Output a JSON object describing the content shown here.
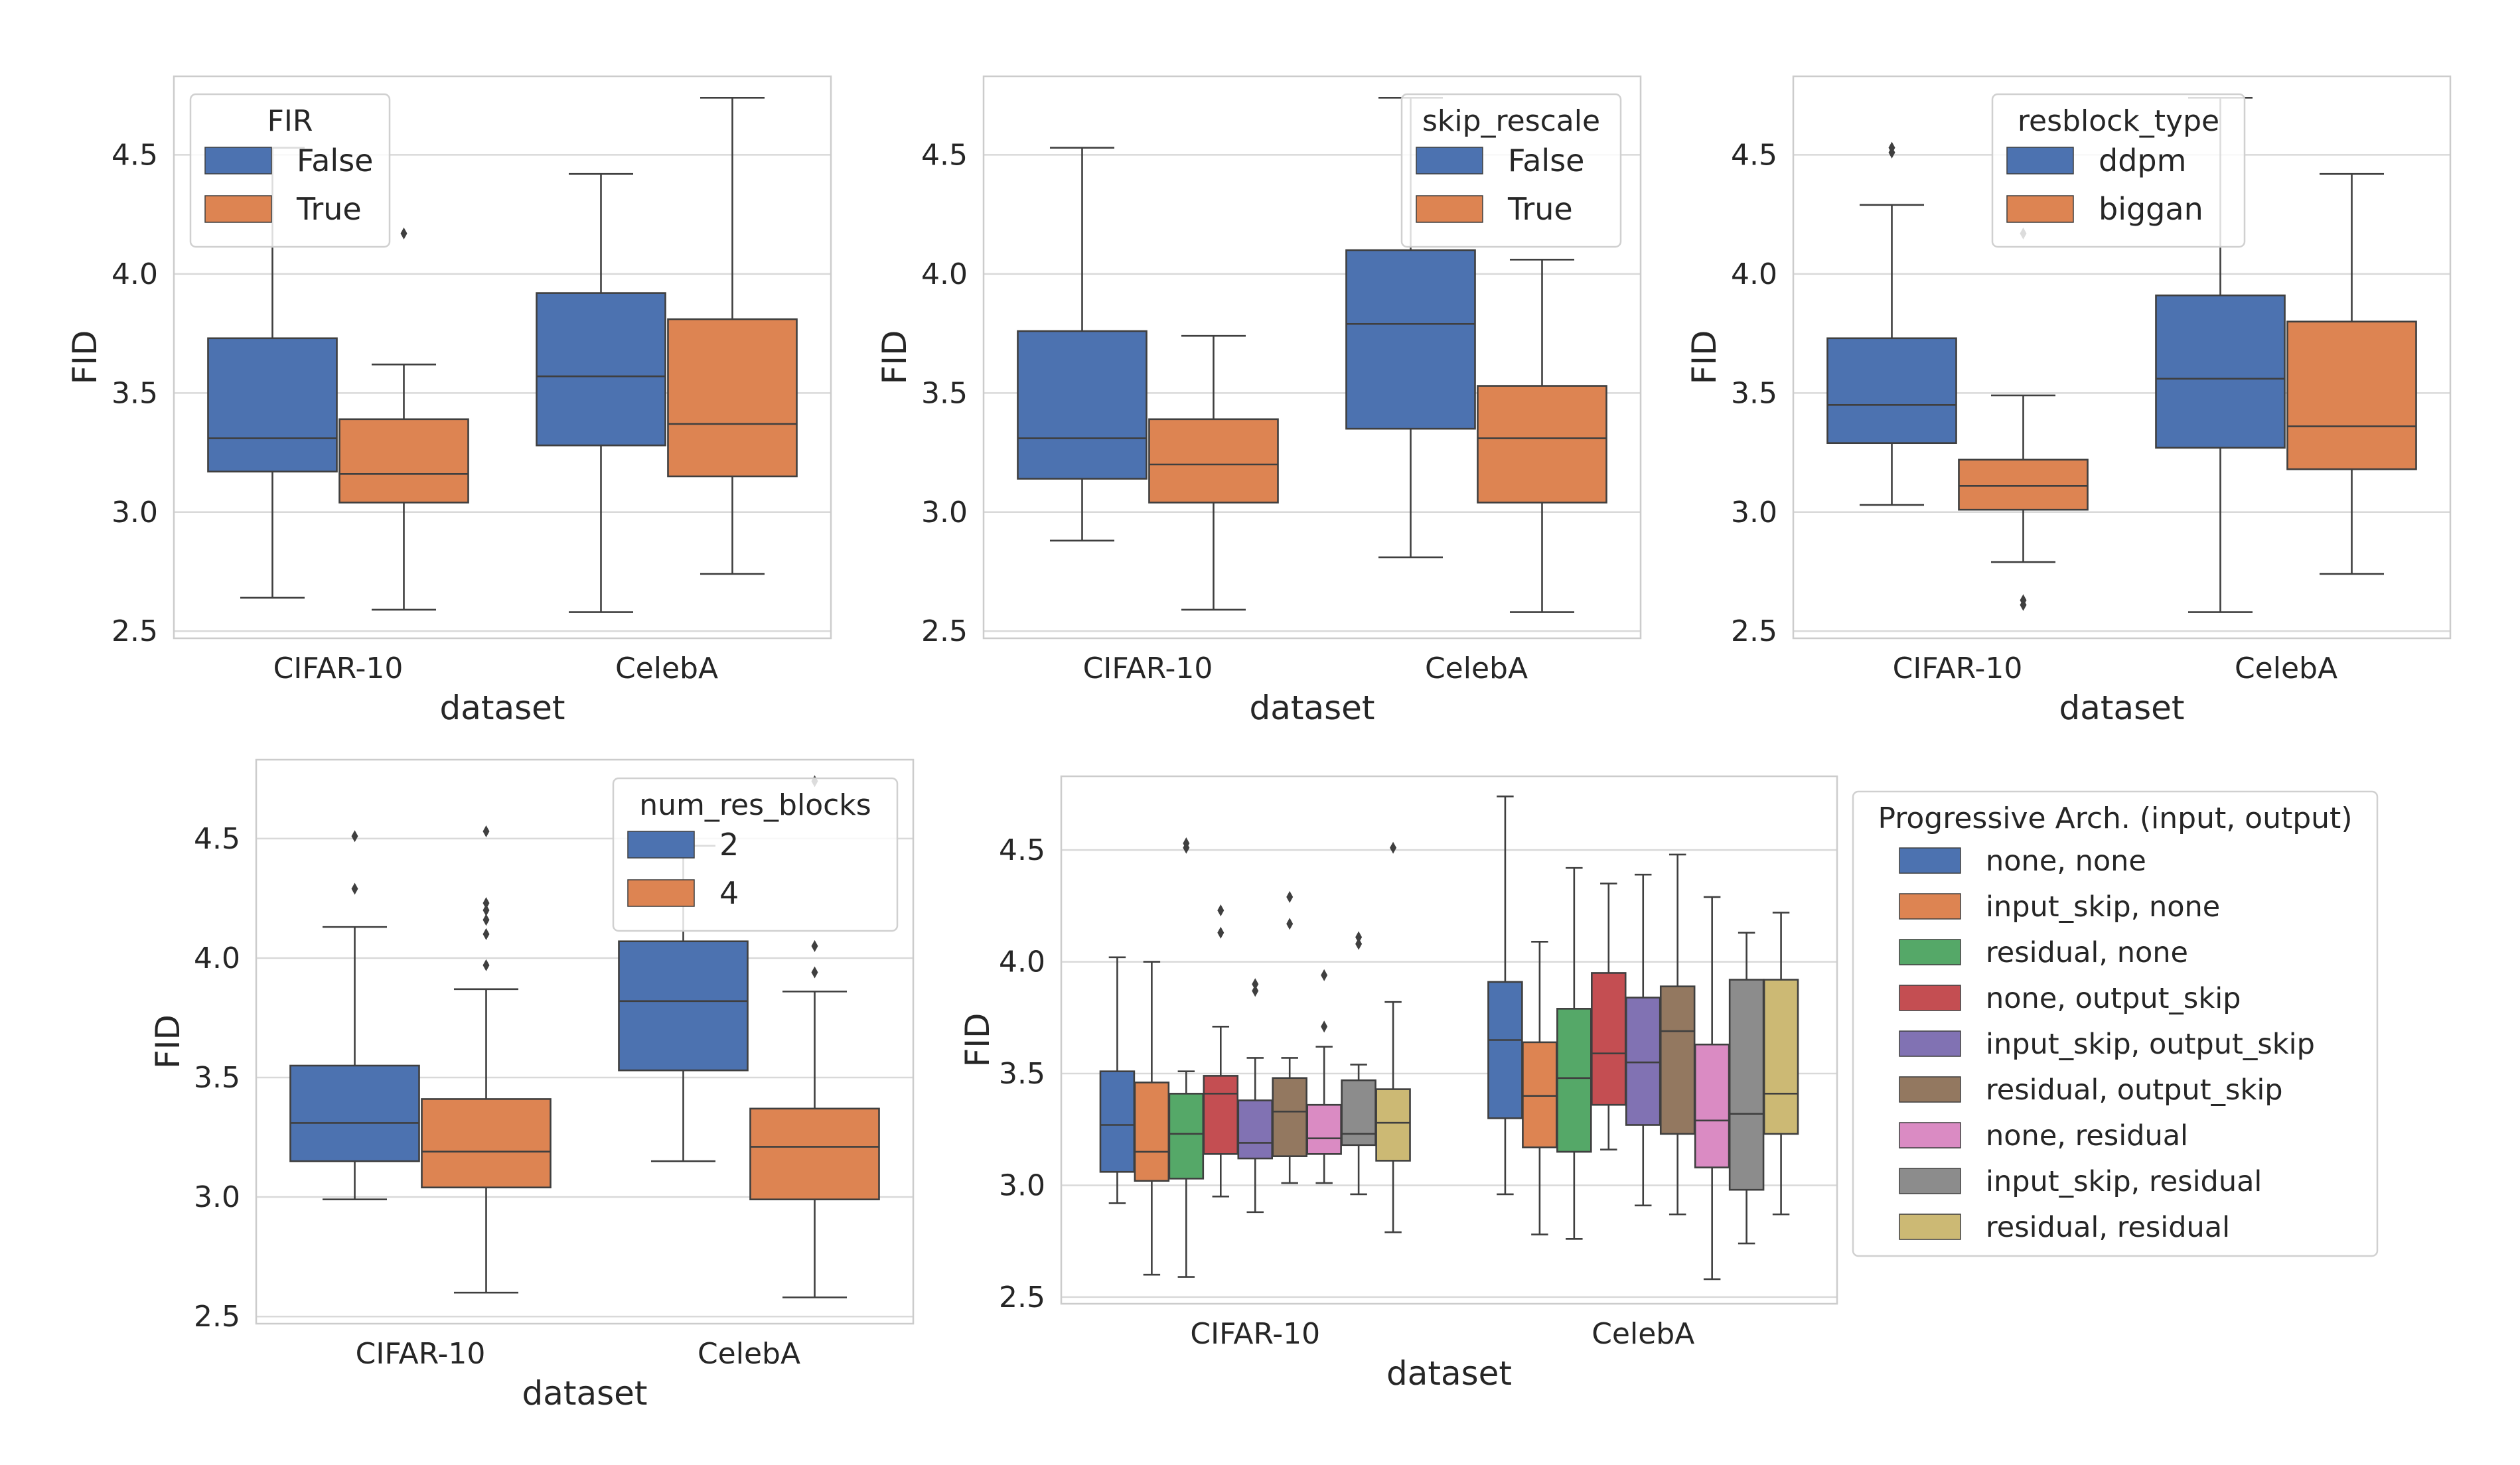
{
  "colors": {
    "blue": "#4c72b0",
    "orange": "#dd8452",
    "green": "#55a868",
    "red": "#c44e52",
    "purple": "#8172b3",
    "brown": "#937860",
    "pink": "#da8bc3",
    "gray": "#8c8c8c",
    "olive": "#ccb974",
    "grid": "#d9d9d9",
    "box_edge": "#3f3f3f"
  },
  "chart_data": [
    {
      "type": "box",
      "xlabel": "dataset",
      "ylabel": "FID",
      "ylim": [
        2.47,
        4.83
      ],
      "yticks": [
        "2.5",
        "3.0",
        "3.5",
        "4.0",
        "4.5"
      ],
      "categories": [
        "CIFAR-10",
        "CelebA"
      ],
      "grid": true,
      "legend": {
        "title": "FIR",
        "position": "top-left"
      },
      "series": [
        {
          "name": "False",
          "color_key": "blue",
          "boxes": [
            {
              "whislo": 2.64,
              "q1": 3.17,
              "med": 3.31,
              "q3": 3.73,
              "whishi": 4.53,
              "fliers": []
            },
            {
              "whislo": 2.58,
              "q1": 3.28,
              "med": 3.57,
              "q3": 3.92,
              "whishi": 4.42,
              "fliers": []
            }
          ]
        },
        {
          "name": "True",
          "color_key": "orange",
          "boxes": [
            {
              "whislo": 2.59,
              "q1": 3.04,
              "med": 3.16,
              "q3": 3.39,
              "whishi": 3.62,
              "fliers": [
                4.17
              ]
            },
            {
              "whislo": 2.74,
              "q1": 3.15,
              "med": 3.37,
              "q3": 3.81,
              "whishi": 4.74,
              "fliers": []
            }
          ]
        }
      ]
    },
    {
      "type": "box",
      "xlabel": "dataset",
      "ylabel": "FID",
      "ylim": [
        2.47,
        4.83
      ],
      "yticks": [
        "2.5",
        "3.0",
        "3.5",
        "4.0",
        "4.5"
      ],
      "categories": [
        "CIFAR-10",
        "CelebA"
      ],
      "grid": true,
      "legend": {
        "title": "skip_rescale",
        "position": "top-right"
      },
      "series": [
        {
          "name": "False",
          "color_key": "blue",
          "boxes": [
            {
              "whislo": 2.88,
              "q1": 3.14,
              "med": 3.31,
              "q3": 3.76,
              "whishi": 4.53,
              "fliers": []
            },
            {
              "whislo": 2.81,
              "q1": 3.35,
              "med": 3.79,
              "q3": 4.1,
              "whishi": 4.74,
              "fliers": []
            }
          ]
        },
        {
          "name": "True",
          "color_key": "orange",
          "boxes": [
            {
              "whislo": 2.59,
              "q1": 3.04,
              "med": 3.2,
              "q3": 3.39,
              "whishi": 3.74,
              "fliers": []
            },
            {
              "whislo": 2.58,
              "q1": 3.04,
              "med": 3.31,
              "q3": 3.53,
              "whishi": 4.06,
              "fliers": []
            }
          ]
        }
      ]
    },
    {
      "type": "box",
      "xlabel": "dataset",
      "ylabel": "FID",
      "ylim": [
        2.47,
        4.83
      ],
      "yticks": [
        "2.5",
        "3.0",
        "3.5",
        "4.0",
        "4.5"
      ],
      "categories": [
        "CIFAR-10",
        "CelebA"
      ],
      "grid": true,
      "legend": {
        "title": "resblock_type",
        "position": "top-center"
      },
      "series": [
        {
          "name": "ddpm",
          "color_key": "blue",
          "boxes": [
            {
              "whislo": 3.03,
              "q1": 3.29,
              "med": 3.45,
              "q3": 3.73,
              "whishi": 4.29,
              "fliers": [
                4.51,
                4.53
              ]
            },
            {
              "whislo": 2.58,
              "q1": 3.27,
              "med": 3.56,
              "q3": 3.91,
              "whishi": 4.74,
              "fliers": []
            }
          ]
        },
        {
          "name": "biggan",
          "color_key": "orange",
          "boxes": [
            {
              "whislo": 2.79,
              "q1": 3.01,
              "med": 3.11,
              "q3": 3.22,
              "whishi": 3.49,
              "fliers": [
                2.61,
                2.63,
                4.17
              ]
            },
            {
              "whislo": 2.74,
              "q1": 3.18,
              "med": 3.36,
              "q3": 3.8,
              "whishi": 4.42,
              "fliers": []
            }
          ]
        }
      ]
    },
    {
      "type": "box",
      "xlabel": "dataset",
      "ylabel": "FID",
      "ylim": [
        2.47,
        4.83
      ],
      "yticks": [
        "2.5",
        "3.0",
        "3.5",
        "4.0",
        "4.5"
      ],
      "categories": [
        "CIFAR-10",
        "CelebA"
      ],
      "grid": true,
      "legend": {
        "title": "num_res_blocks",
        "position": "top-right"
      },
      "series": [
        {
          "name": "2",
          "color_key": "blue",
          "boxes": [
            {
              "whislo": 2.99,
              "q1": 3.15,
              "med": 3.31,
              "q3": 3.55,
              "whishi": 4.13,
              "fliers": [
                4.29,
                4.51
              ]
            },
            {
              "whislo": 3.15,
              "q1": 3.53,
              "med": 3.82,
              "q3": 4.07,
              "whishi": 4.47,
              "fliers": []
            }
          ]
        },
        {
          "name": "4",
          "color_key": "orange",
          "boxes": [
            {
              "whislo": 2.6,
              "q1": 3.04,
              "med": 3.19,
              "q3": 3.41,
              "whishi": 3.87,
              "fliers": [
                3.97,
                4.1,
                4.16,
                4.2,
                4.23,
                4.53
              ]
            },
            {
              "whislo": 2.58,
              "q1": 2.99,
              "med": 3.21,
              "q3": 3.37,
              "whishi": 3.86,
              "fliers": [
                3.94,
                4.05,
                4.74
              ]
            }
          ]
        }
      ]
    },
    {
      "type": "box",
      "xlabel": "dataset",
      "ylabel": "FID",
      "ylim": [
        2.47,
        4.83
      ],
      "yticks": [
        "2.5",
        "3.0",
        "3.5",
        "4.0",
        "4.5"
      ],
      "categories": [
        "CIFAR-10",
        "CelebA"
      ],
      "grid": true,
      "legend": {
        "title": "Progressive Arch. (input, output)",
        "position": "outside-right"
      },
      "series": [
        {
          "name": "none, none",
          "color_key": "blue",
          "boxes": [
            {
              "whislo": 2.92,
              "q1": 3.06,
              "med": 3.27,
              "q3": 3.51,
              "whishi": 4.02,
              "fliers": []
            },
            {
              "whislo": 2.96,
              "q1": 3.3,
              "med": 3.65,
              "q3": 3.91,
              "whishi": 4.74,
              "fliers": []
            }
          ]
        },
        {
          "name": "input_skip, none",
          "color_key": "orange",
          "boxes": [
            {
              "whislo": 2.6,
              "q1": 3.02,
              "med": 3.15,
              "q3": 3.46,
              "whishi": 4.0,
              "fliers": []
            },
            {
              "whislo": 2.78,
              "q1": 3.17,
              "med": 3.4,
              "q3": 3.64,
              "whishi": 4.09,
              "fliers": []
            }
          ]
        },
        {
          "name": "residual, none",
          "color_key": "green",
          "boxes": [
            {
              "whislo": 2.59,
              "q1": 3.03,
              "med": 3.23,
              "q3": 3.41,
              "whishi": 3.51,
              "fliers": [
                4.51,
                4.53
              ]
            },
            {
              "whislo": 2.76,
              "q1": 3.15,
              "med": 3.48,
              "q3": 3.79,
              "whishi": 4.42,
              "fliers": []
            }
          ]
        },
        {
          "name": "none, output_skip",
          "color_key": "red",
          "boxes": [
            {
              "whislo": 2.95,
              "q1": 3.14,
              "med": 3.41,
              "q3": 3.49,
              "whishi": 3.71,
              "fliers": [
                4.13,
                4.23
              ]
            },
            {
              "whislo": 3.16,
              "q1": 3.36,
              "med": 3.59,
              "q3": 3.95,
              "whishi": 4.35,
              "fliers": []
            }
          ]
        },
        {
          "name": "input_skip, output_skip",
          "color_key": "purple",
          "boxes": [
            {
              "whislo": 2.88,
              "q1": 3.12,
              "med": 3.19,
              "q3": 3.38,
              "whishi": 3.57,
              "fliers": [
                3.87,
                3.9
              ]
            },
            {
              "whislo": 2.91,
              "q1": 3.27,
              "med": 3.55,
              "q3": 3.84,
              "whishi": 4.39,
              "fliers": []
            }
          ]
        },
        {
          "name": "residual, output_skip",
          "color_key": "brown",
          "boxes": [
            {
              "whislo": 3.01,
              "q1": 3.13,
              "med": 3.33,
              "q3": 3.48,
              "whishi": 3.57,
              "fliers": [
                4.17,
                4.29
              ]
            },
            {
              "whislo": 2.87,
              "q1": 3.23,
              "med": 3.69,
              "q3": 3.89,
              "whishi": 4.48,
              "fliers": []
            }
          ]
        },
        {
          "name": "none, residual",
          "color_key": "pink",
          "boxes": [
            {
              "whislo": 3.01,
              "q1": 3.14,
              "med": 3.21,
              "q3": 3.36,
              "whishi": 3.62,
              "fliers": [
                3.71,
                3.94
              ]
            },
            {
              "whislo": 2.58,
              "q1": 3.08,
              "med": 3.29,
              "q3": 3.63,
              "whishi": 4.29,
              "fliers": []
            }
          ]
        },
        {
          "name": "input_skip, residual",
          "color_key": "gray",
          "boxes": [
            {
              "whislo": 2.96,
              "q1": 3.18,
              "med": 3.23,
              "q3": 3.47,
              "whishi": 3.54,
              "fliers": [
                4.08,
                4.11
              ]
            },
            {
              "whislo": 2.74,
              "q1": 2.98,
              "med": 3.32,
              "q3": 3.92,
              "whishi": 4.13,
              "fliers": []
            }
          ]
        },
        {
          "name": "residual, residual",
          "color_key": "olive",
          "boxes": [
            {
              "whislo": 2.79,
              "q1": 3.11,
              "med": 3.28,
              "q3": 3.43,
              "whishi": 3.82,
              "fliers": [
                4.51
              ]
            },
            {
              "whislo": 2.87,
              "q1": 3.23,
              "med": 3.41,
              "q3": 3.92,
              "whishi": 4.22,
              "fliers": []
            }
          ]
        }
      ]
    }
  ]
}
